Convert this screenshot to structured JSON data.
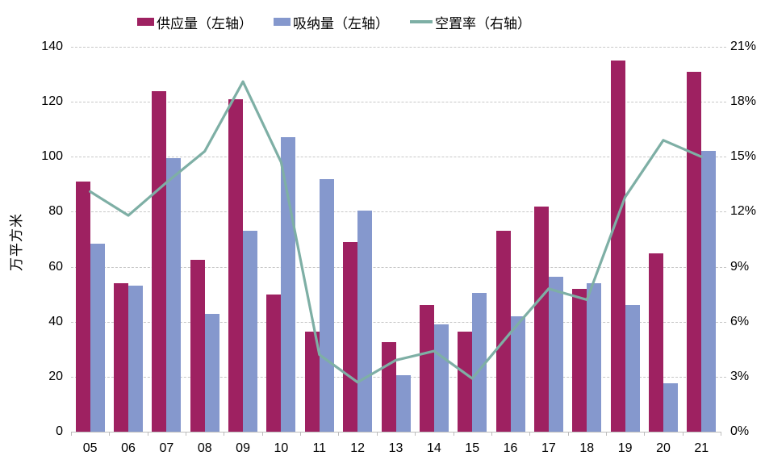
{
  "chart_data": {
    "type": "bar",
    "subtype": "grouped-bars-with-line-overlay",
    "categories": [
      "05",
      "06",
      "07",
      "08",
      "09",
      "10",
      "11",
      "12",
      "13",
      "14",
      "15",
      "16",
      "17",
      "18",
      "19",
      "20",
      "21"
    ],
    "series": [
      {
        "name": "供应量（左轴）",
        "type": "bar",
        "axis": "left",
        "color": "#9E2161",
        "values": [
          91,
          54,
          124,
          62.5,
          121,
          50,
          36.5,
          69,
          32.5,
          46,
          36.5,
          73,
          82,
          52,
          135,
          65,
          131
        ]
      },
      {
        "name": "吸纳量（左轴）",
        "type": "bar",
        "axis": "left",
        "color": "#8598CD",
        "values": [
          68.5,
          53,
          99.5,
          43,
          73,
          107,
          92,
          80.5,
          20.5,
          39,
          50.5,
          42,
          56.5,
          54,
          46,
          17.5,
          102
        ]
      },
      {
        "name": "空置率（右轴）",
        "type": "line",
        "axis": "right",
        "color": "#7EAFA5",
        "values": [
          13.1,
          11.8,
          13.6,
          15.3,
          19.1,
          14.7,
          4.2,
          2.7,
          3.9,
          4.4,
          2.9,
          5.4,
          7.8,
          7.2,
          12.8,
          15.9,
          15.0
        ]
      }
    ],
    "left_axis": {
      "title": "万平方米",
      "min": 0,
      "max": 140,
      "step": 20,
      "tick_labels": [
        "0",
        "20",
        "40",
        "60",
        "80",
        "100",
        "120",
        "140"
      ]
    },
    "right_axis": {
      "min": 0,
      "max": 21,
      "step": 3,
      "unit": "%",
      "tick_labels": [
        "0%",
        "3%",
        "6%",
        "9%",
        "12%",
        "15%",
        "18%",
        "21%"
      ]
    },
    "grid": "horizontal-dashed",
    "legend_position": "top-center"
  }
}
